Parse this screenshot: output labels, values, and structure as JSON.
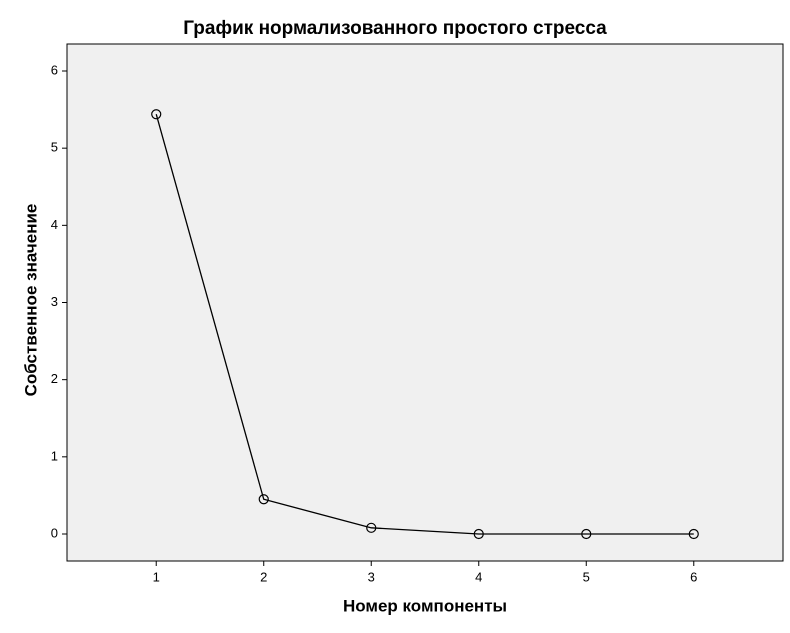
{
  "chart_data": {
    "type": "line",
    "title": "График нормализованного простого стресса",
    "xlabel": "Номер компоненты",
    "ylabel": "Собственное значение",
    "x": [
      1,
      2,
      3,
      4,
      5,
      6
    ],
    "values": [
      5.44,
      0.45,
      0.08,
      0,
      0,
      0
    ],
    "color": "#000000",
    "marker": "circle",
    "xlim": [
      0.17,
      6.83
    ],
    "ylim": [
      -0.35,
      6.35
    ],
    "xticks": [
      1,
      2,
      3,
      4,
      5,
      6
    ],
    "yticks": [
      0,
      1,
      2,
      3,
      4,
      5,
      6
    ]
  }
}
